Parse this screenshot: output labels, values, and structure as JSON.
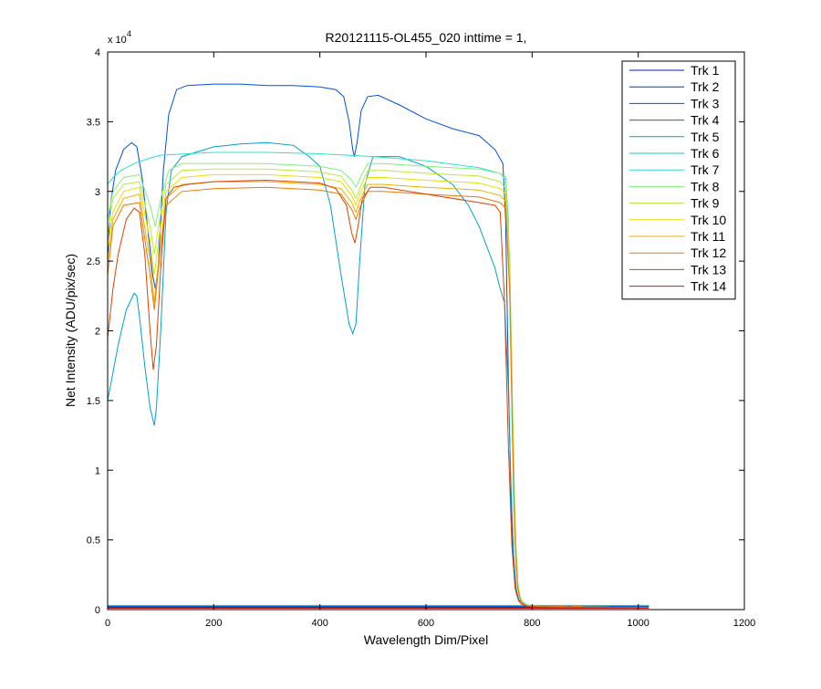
{
  "chart_data": {
    "type": "line",
    "title": "R20121115-OL455_020 inttime = 1,",
    "xlabel": "Wavelength Dim/Pixel",
    "ylabel": "Net Intensity (ADU/pix/sec)",
    "y_exponent_label": "x 10",
    "y_exponent_power": "4",
    "xlim": [
      0,
      1200
    ],
    "ylim": [
      0,
      40000
    ],
    "x_ticks": [
      0,
      200,
      400,
      600,
      800,
      1000,
      1200
    ],
    "x_tick_labels": [
      "0",
      "200",
      "400",
      "600",
      "800",
      "1000",
      "1200"
    ],
    "y_ticks": [
      0,
      5000,
      10000,
      15000,
      20000,
      25000,
      30000,
      35000,
      40000
    ],
    "y_tick_labels": [
      "0",
      "0.5",
      "1",
      "1.5",
      "2",
      "2.5",
      "3",
      "3.5",
      "4"
    ],
    "grid": false,
    "legend_position": "top-right",
    "series": [
      {
        "name": "Trk 1",
        "color": "#0020a8",
        "x": [
          0,
          1020
        ],
        "y": [
          150,
          150
        ]
      },
      {
        "name": "Trk 2",
        "color": "#003ac8",
        "x": [
          0,
          1020
        ],
        "y": [
          200,
          200
        ]
      },
      {
        "name": "Trk 3",
        "color": "#0050e0",
        "x": [
          0,
          5,
          15,
          30,
          45,
          55,
          65,
          75,
          85,
          90,
          95,
          100,
          105,
          115,
          130,
          150,
          200,
          250,
          300,
          350,
          400,
          430,
          445,
          455,
          462,
          465,
          470,
          478,
          490,
          510,
          550,
          600,
          650,
          700,
          730,
          745,
          750,
          755,
          760,
          765,
          770,
          775,
          780,
          790,
          800,
          820,
          850,
          900,
          1000,
          1020
        ],
        "y": [
          25000,
          29000,
          31500,
          33000,
          33500,
          33200,
          31000,
          27500,
          24000,
          23000,
          24500,
          28000,
          31500,
          35500,
          37300,
          37600,
          37700,
          37700,
          37600,
          37600,
          37500,
          37300,
          36800,
          35000,
          33000,
          32500,
          33500,
          35800,
          36800,
          36900,
          36200,
          35200,
          34500,
          34000,
          33000,
          32000,
          28000,
          17000,
          8000,
          3000,
          1200,
          600,
          400,
          250,
          200,
          180,
          170,
          160,
          150,
          150
        ]
      },
      {
        "name": "Trk 4",
        "color": "#0070c8",
        "x": [
          0,
          1020
        ],
        "y": [
          250,
          250
        ]
      },
      {
        "name": "Trk 5",
        "color": "#00a0d0",
        "x": [
          0,
          10,
          20,
          35,
          50,
          55,
          60,
          70,
          80,
          88,
          92,
          100,
          110,
          120,
          140,
          200,
          250,
          300,
          350,
          380,
          400,
          420,
          440,
          455,
          462,
          468,
          475,
          485,
          500,
          550,
          600,
          650,
          680,
          700,
          720,
          730,
          740,
          748,
          755,
          760,
          765,
          770,
          775,
          780,
          790,
          800,
          820,
          850,
          900,
          1000,
          1020
        ],
        "y": [
          15000,
          17000,
          19000,
          21500,
          22700,
          22500,
          21000,
          17500,
          14500,
          13200,
          14500,
          20000,
          28500,
          31500,
          32500,
          33200,
          33400,
          33500,
          33300,
          32500,
          31800,
          29000,
          24000,
          20500,
          19800,
          20500,
          25000,
          30500,
          32500,
          32500,
          31800,
          30500,
          29000,
          27500,
          25500,
          24500,
          23000,
          22000,
          16000,
          9000,
          4000,
          1500,
          700,
          400,
          250,
          200,
          180,
          170,
          160,
          150,
          150
        ]
      },
      {
        "name": "Trk 6",
        "color": "#10c0d8",
        "x": [
          0,
          1020
        ],
        "y": [
          300,
          300
        ]
      },
      {
        "name": "Trk 7",
        "color": "#30e0d0",
        "x": [
          0,
          10,
          25,
          50,
          80,
          100,
          150,
          200,
          300,
          400,
          500,
          600,
          700,
          740,
          750,
          755,
          760,
          765,
          770,
          775,
          780,
          790,
          800,
          820,
          850,
          900,
          1000,
          1020
        ],
        "y": [
          30500,
          31000,
          31500,
          32000,
          32400,
          32600,
          32700,
          32800,
          32800,
          32700,
          32500,
          32200,
          31700,
          31300,
          31000,
          28000,
          18000,
          8000,
          3000,
          1200,
          600,
          350,
          250,
          200,
          180,
          160,
          150,
          150
        ]
      },
      {
        "name": "Trk 8",
        "color": "#7ef07e",
        "x": [
          0,
          10,
          30,
          60,
          80,
          90,
          100,
          115,
          140,
          200,
          300,
          400,
          440,
          460,
          468,
          476,
          490,
          520,
          600,
          700,
          740,
          750,
          758,
          763,
          768,
          773,
          778,
          785,
          795,
          810,
          850,
          870,
          880,
          900,
          1000,
          1020
        ],
        "y": [
          28000,
          30000,
          31000,
          31200,
          29000,
          27500,
          29500,
          31500,
          32000,
          32000,
          32000,
          31800,
          31500,
          30800,
          30300,
          31000,
          32000,
          32000,
          31800,
          31600,
          31300,
          30800,
          25000,
          15000,
          6000,
          2000,
          800,
          400,
          250,
          200,
          200,
          300,
          250,
          180,
          150,
          150
        ]
      },
      {
        "name": "Trk 9",
        "color": "#bce83a",
        "x": [
          0,
          10,
          30,
          60,
          80,
          88,
          96,
          110,
          140,
          200,
          300,
          400,
          440,
          460,
          468,
          476,
          490,
          520,
          600,
          700,
          740,
          750,
          758,
          763,
          768,
          773,
          778,
          785,
          795,
          810,
          850,
          870,
          880,
          900,
          1000,
          1020
        ],
        "y": [
          27000,
          29500,
          30500,
          30700,
          27500,
          25500,
          27500,
          30500,
          31500,
          31600,
          31600,
          31400,
          31100,
          30100,
          29500,
          30300,
          31500,
          31500,
          31300,
          31100,
          30700,
          30200,
          24000,
          14000,
          5500,
          1800,
          700,
          350,
          250,
          200,
          200,
          300,
          250,
          180,
          150,
          150
        ]
      },
      {
        "name": "Trk 10",
        "color": "#e8e000",
        "x": [
          0,
          10,
          30,
          60,
          80,
          88,
          96,
          110,
          140,
          200,
          300,
          400,
          440,
          460,
          468,
          476,
          490,
          520,
          600,
          700,
          740,
          750,
          758,
          763,
          768,
          773,
          778,
          785,
          795,
          810,
          850,
          870,
          880,
          900,
          1000,
          1020
        ],
        "y": [
          26000,
          28500,
          30000,
          30300,
          26500,
          24000,
          26500,
          30000,
          31000,
          31200,
          31200,
          31000,
          30700,
          29700,
          29000,
          29900,
          31000,
          31000,
          30800,
          30600,
          30200,
          29800,
          23500,
          13500,
          5200,
          1700,
          700,
          350,
          250,
          200,
          200,
          300,
          250,
          180,
          150,
          150
        ]
      },
      {
        "name": "Trk 11",
        "color": "#f0b000",
        "x": [
          0,
          10,
          30,
          60,
          80,
          88,
          96,
          110,
          140,
          200,
          300,
          400,
          440,
          460,
          468,
          476,
          490,
          520,
          600,
          700,
          740,
          750,
          758,
          763,
          768,
          773,
          778,
          785,
          795,
          810,
          850,
          870,
          880,
          900,
          1000,
          1020
        ],
        "y": [
          25000,
          28000,
          29500,
          29800,
          25000,
          22000,
          25000,
          29500,
          30500,
          30700,
          30700,
          30500,
          30200,
          29200,
          28500,
          29400,
          30500,
          30500,
          30300,
          30100,
          29700,
          29300,
          23000,
          13000,
          5000,
          1600,
          700,
          350,
          250,
          200,
          200,
          300,
          250,
          180,
          150,
          150
        ]
      },
      {
        "name": "Trk 12",
        "color": "#f07800",
        "x": [
          0,
          10,
          30,
          60,
          80,
          88,
          96,
          110,
          140,
          200,
          300,
          400,
          440,
          460,
          468,
          476,
          490,
          520,
          600,
          700,
          740,
          750,
          758,
          763,
          768,
          773,
          778,
          785,
          795,
          810,
          850,
          870,
          880,
          900,
          1000,
          1020
        ],
        "y": [
          24000,
          27500,
          29000,
          29200,
          24000,
          21500,
          24500,
          29000,
          30000,
          30200,
          30300,
          30100,
          29800,
          28700,
          28000,
          28900,
          30000,
          30000,
          29800,
          29600,
          29200,
          28800,
          22500,
          12500,
          4800,
          1500,
          650,
          350,
          250,
          200,
          200,
          280,
          240,
          180,
          150,
          150
        ]
      },
      {
        "name": "Trk 13",
        "color": "#e04000",
        "x": [
          0,
          10,
          20,
          35,
          50,
          60,
          70,
          80,
          86,
          92,
          100,
          110,
          125,
          150,
          200,
          300,
          400,
          430,
          450,
          460,
          466,
          472,
          480,
          495,
          520,
          600,
          700,
          730,
          740,
          748,
          755,
          762,
          768,
          774,
          780,
          790,
          800,
          850,
          900,
          1000,
          1020
        ],
        "y": [
          19500,
          23000,
          25500,
          28000,
          28800,
          28500,
          25500,
          20000,
          17200,
          19000,
          24500,
          29500,
          30300,
          30500,
          30700,
          30800,
          30600,
          30200,
          29000,
          27000,
          26300,
          27500,
          29500,
          30300,
          30300,
          29800,
          29200,
          29000,
          28500,
          22000,
          12000,
          4500,
          1500,
          700,
          400,
          250,
          200,
          180,
          160,
          150,
          150
        ]
      },
      {
        "name": "Trk 14",
        "color": "#c81818",
        "x": [
          0,
          1020
        ],
        "y": [
          100,
          100
        ]
      }
    ]
  }
}
